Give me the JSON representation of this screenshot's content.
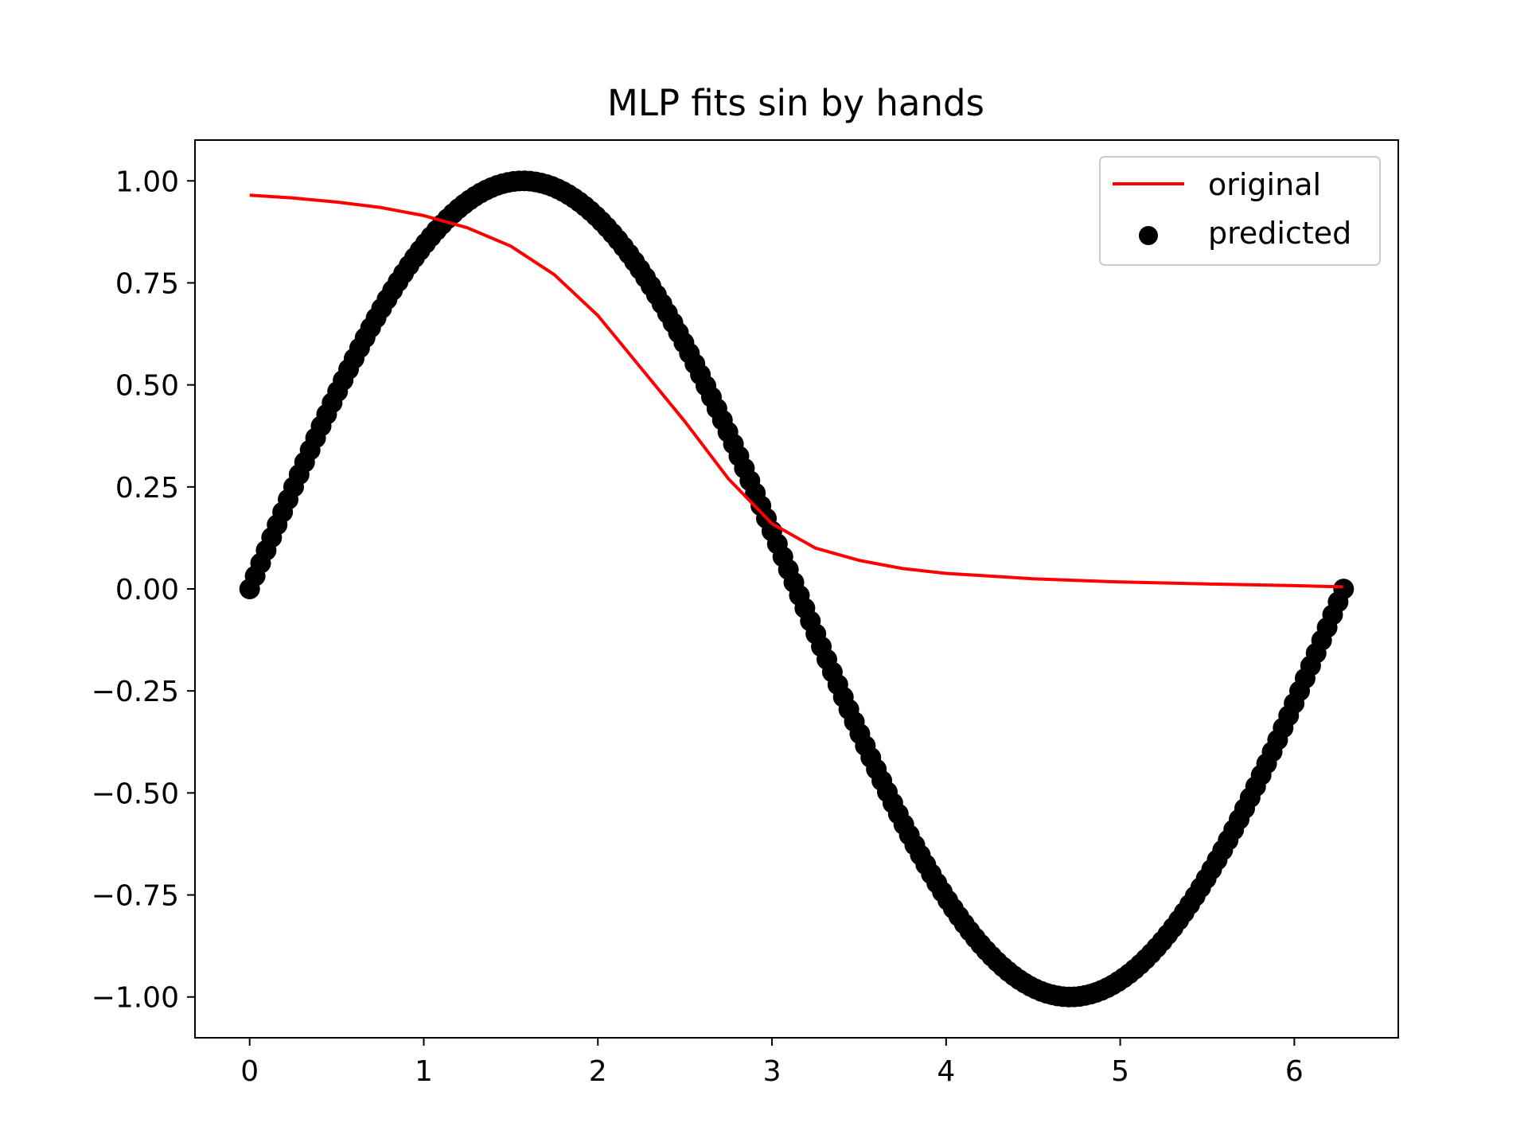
{
  "chart_data": {
    "type": "line",
    "title": "MLP fits sin by hands",
    "xlabel": "",
    "ylabel": "",
    "xlim": [
      -0.314,
      6.597
    ],
    "ylim": [
      -1.1,
      1.1
    ],
    "x_ticks": [
      0,
      1,
      2,
      3,
      4,
      5,
      6
    ],
    "x_tick_labels": [
      "0",
      "1",
      "2",
      "3",
      "4",
      "5",
      "6"
    ],
    "y_ticks": [
      1.0,
      0.75,
      0.5,
      0.25,
      0.0,
      -0.25,
      -0.5,
      -0.75,
      -1.0
    ],
    "y_tick_labels": [
      "1.00",
      "0.75",
      "0.50",
      "0.25",
      "0.00",
      "−0.25",
      "−0.50",
      "−0.75",
      "−1.00"
    ],
    "grid": false,
    "legend_position": "upper right",
    "series": [
      {
        "name": "original",
        "kind": "line",
        "color": "#ff0000",
        "x": [
          0,
          0.25,
          0.5,
          0.75,
          1.0,
          1.25,
          1.5,
          1.75,
          2.0,
          2.25,
          2.5,
          2.75,
          3.0,
          3.25,
          3.5,
          3.75,
          4.0,
          4.5,
          5.0,
          5.5,
          6.0,
          6.28
        ],
        "y": [
          0.965,
          0.958,
          0.948,
          0.935,
          0.915,
          0.885,
          0.84,
          0.77,
          0.67,
          0.54,
          0.41,
          0.27,
          0.16,
          0.1,
          0.07,
          0.05,
          0.038,
          0.025,
          0.017,
          0.012,
          0.008,
          0.005
        ]
      },
      {
        "name": "predicted",
        "kind": "scatter",
        "color": "#000000",
        "x_range": [
          0,
          6.283
        ],
        "points": 200,
        "function": "sin"
      }
    ]
  }
}
